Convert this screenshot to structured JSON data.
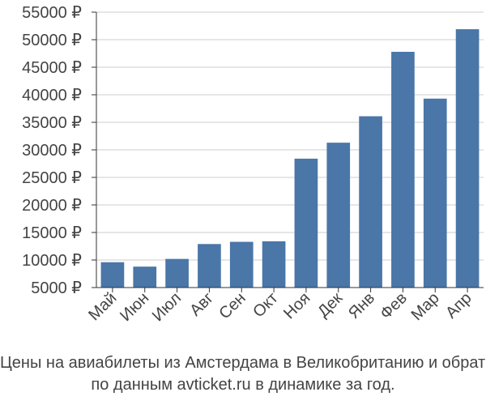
{
  "chart_data": {
    "type": "bar",
    "title": "",
    "xlabel": "",
    "ylabel": "",
    "ylim": [
      5000,
      55000
    ],
    "currency_suffix": " ₽",
    "yticks": [
      5000,
      10000,
      15000,
      20000,
      25000,
      30000,
      35000,
      40000,
      45000,
      50000,
      55000
    ],
    "categories": [
      "Май",
      "Июн",
      "Июл",
      "Авг",
      "Сен",
      "Окт",
      "Ноя",
      "Дек",
      "Янв",
      "Фев",
      "Мар",
      "Апр"
    ],
    "values": [
      9600,
      8800,
      10200,
      12900,
      13300,
      13400,
      28400,
      31300,
      36100,
      47800,
      39300,
      51900
    ],
    "bar_color": "#4a76a8",
    "grid_color": "#cccccc",
    "axis_color": "#333333"
  },
  "caption": {
    "line1": "Цены на авиабилеты из Амстердама в Великобританию и обратно",
    "line2": "по данным avticket.ru в динамике за год."
  }
}
